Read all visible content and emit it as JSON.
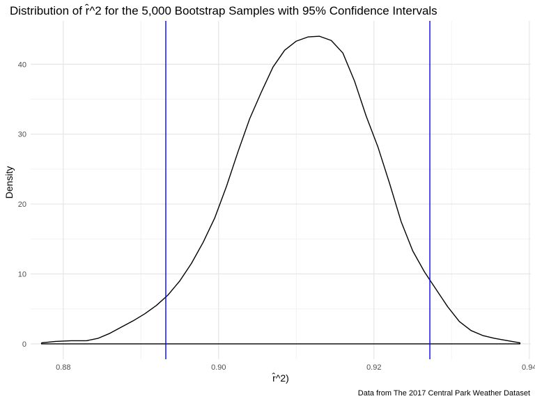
{
  "chart_data": {
    "type": "line",
    "title": "Distribution of r̂^2 for the 5,000 Bootstrap Samples with 95% Confidence Intervals",
    "xlabel": "r̂^2)",
    "ylabel": "Density",
    "caption": "Data from The 2017 Central Park Weather Dataset",
    "xlim": [
      0.8758,
      0.9402
    ],
    "ylim": [
      -2.2,
      46.2
    ],
    "x_ticks": [
      0.88,
      0.9,
      0.92,
      0.94
    ],
    "x_tick_labels": [
      "0.88",
      "0.90",
      "0.92",
      "0.94"
    ],
    "y_ticks": [
      0,
      10,
      20,
      30,
      40
    ],
    "y_tick_labels": [
      "0",
      "10",
      "20",
      "30",
      "40"
    ],
    "grid": true,
    "series": [
      {
        "color": "#000000",
        "points": [
          [
            0.8772,
            0.15
          ],
          [
            0.879,
            0.35
          ],
          [
            0.881,
            0.45
          ],
          [
            0.883,
            0.45
          ],
          [
            0.8845,
            0.8
          ],
          [
            0.886,
            1.5
          ],
          [
            0.8875,
            2.4
          ],
          [
            0.889,
            3.3
          ],
          [
            0.8905,
            4.3
          ],
          [
            0.892,
            5.5
          ],
          [
            0.8935,
            7.0
          ],
          [
            0.895,
            9.0
          ],
          [
            0.8965,
            11.5
          ],
          [
            0.898,
            14.5
          ],
          [
            0.8995,
            18.0
          ],
          [
            0.901,
            22.5
          ],
          [
            0.9025,
            27.5
          ],
          [
            0.904,
            32.2
          ],
          [
            0.9055,
            36.0
          ],
          [
            0.907,
            39.6
          ],
          [
            0.9085,
            42.0
          ],
          [
            0.91,
            43.3
          ],
          [
            0.9115,
            43.9
          ],
          [
            0.913,
            44.0
          ],
          [
            0.9145,
            43.4
          ],
          [
            0.916,
            41.6
          ],
          [
            0.9175,
            37.6
          ],
          [
            0.919,
            32.6
          ],
          [
            0.9205,
            28.2
          ],
          [
            0.922,
            23.0
          ],
          [
            0.9235,
            17.5
          ],
          [
            0.925,
            13.3
          ],
          [
            0.9265,
            10.3
          ],
          [
            0.928,
            7.8
          ],
          [
            0.9295,
            5.3
          ],
          [
            0.931,
            3.2
          ],
          [
            0.9325,
            1.9
          ],
          [
            0.934,
            1.2
          ],
          [
            0.9355,
            0.8
          ],
          [
            0.937,
            0.5
          ],
          [
            0.9388,
            0.15
          ],
          [
            0.9388,
            0.0
          ],
          [
            0.8772,
            0.0
          ],
          [
            0.8772,
            0.15
          ]
        ]
      }
    ],
    "reference_lines": [
      {
        "x": 0.8932,
        "color": "#0000ff"
      },
      {
        "x": 0.9272,
        "color": "#0000ff"
      }
    ]
  }
}
